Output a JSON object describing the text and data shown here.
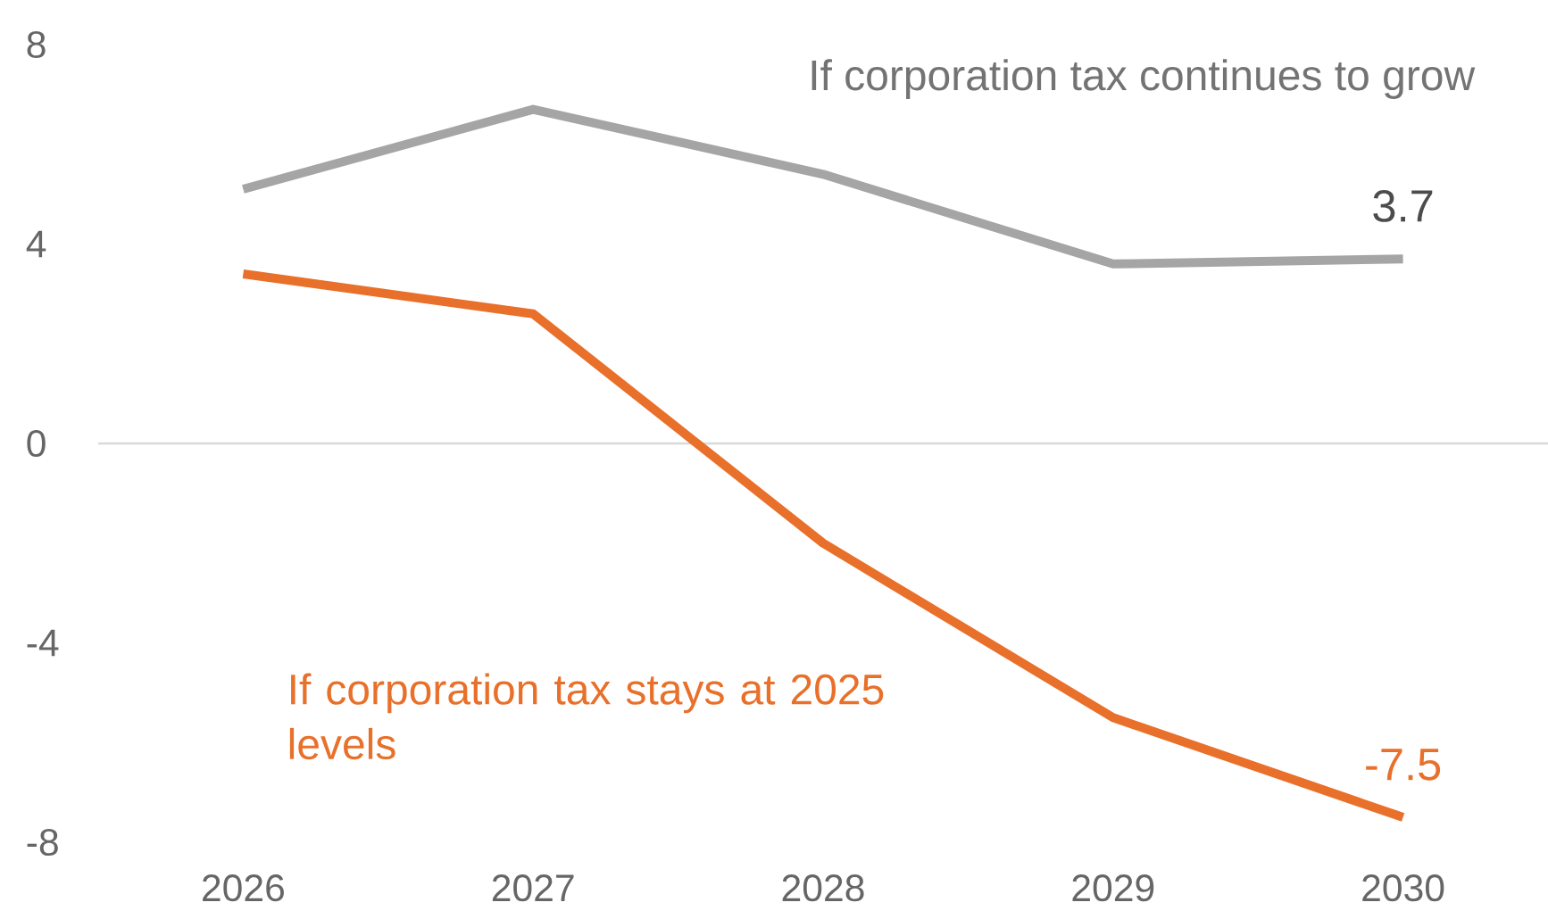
{
  "chart_data": {
    "type": "line",
    "categories": [
      "2026",
      "2027",
      "2028",
      "2029",
      "2030"
    ],
    "series": [
      {
        "name": "If corporation tax continues to grow",
        "color": "#a5a5a5",
        "values": [
          5.1,
          6.7,
          5.4,
          3.6,
          3.7
        ],
        "value_labels": [
          null,
          null,
          null,
          null,
          "3.7"
        ]
      },
      {
        "name": "If corporation tax stays at 2025 levels",
        "color": "#e8702a",
        "values": [
          3.4,
          2.6,
          -2.0,
          -5.5,
          -7.5
        ],
        "value_labels": [
          null,
          null,
          null,
          null,
          "-7.5"
        ]
      }
    ],
    "ylim": [
      -8,
      8
    ],
    "yticks": [
      -8,
      -4,
      0,
      4,
      8
    ],
    "grid": false,
    "marker": "none",
    "line_style": "solid",
    "ref_lines": [
      {
        "axis": "y",
        "value": 0,
        "color": "#d9d9d9"
      }
    ]
  }
}
